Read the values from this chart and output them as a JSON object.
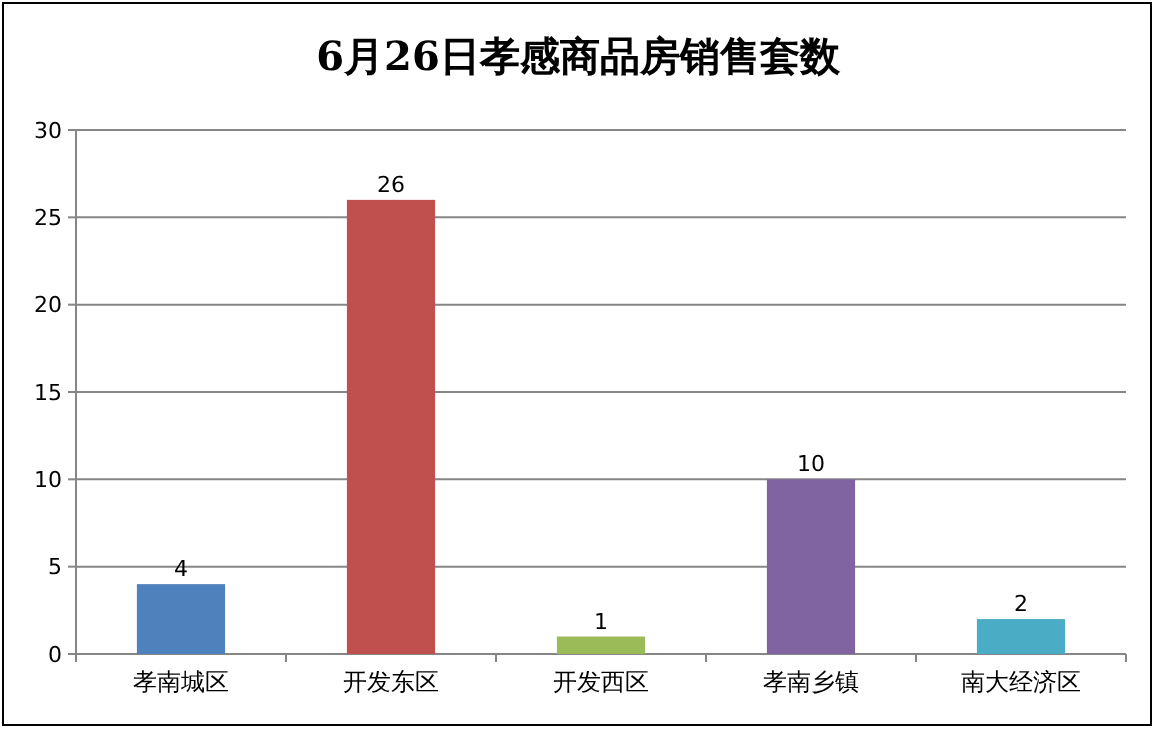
{
  "chart_data": {
    "type": "bar",
    "title": "6月26日孝感商品房销售套数",
    "categories": [
      "孝南城区",
      "开发东区",
      "开发西区",
      "孝南乡镇",
      "南大经济区"
    ],
    "values": [
      4,
      26,
      1,
      10,
      2
    ],
    "colors": [
      "#4f81bd",
      "#c0504d",
      "#9bbb59",
      "#8064a2",
      "#4bacc6"
    ],
    "ylim": [
      0,
      30
    ],
    "yticks": [
      0,
      5,
      10,
      15,
      20,
      25,
      30
    ],
    "grid": "y",
    "data_labels": true
  }
}
